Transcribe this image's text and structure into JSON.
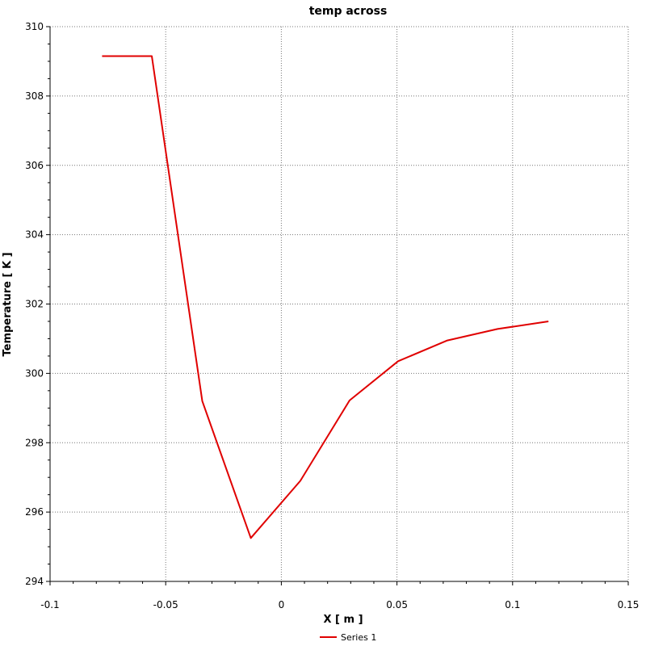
{
  "chart_data": {
    "type": "line",
    "title": "temp across",
    "xlabel": "X [ m ]",
    "ylabel": "Temperature [ K ]",
    "xlim": [
      -0.1,
      0.15
    ],
    "ylim": [
      294,
      310
    ],
    "xticks": [
      "-0.1",
      "-0.05",
      "0",
      "0.05",
      "0.1",
      "0.15"
    ],
    "yticks": [
      "294",
      "296",
      "298",
      "300",
      "302",
      "304",
      "306",
      "308",
      "310"
    ],
    "grid": true,
    "legend_position": "bottom-center",
    "series": [
      {
        "name": "Series 1",
        "color": "#e00000",
        "x": [
          -0.0775,
          -0.056,
          -0.0342,
          -0.0132,
          0.0082,
          0.0295,
          0.0505,
          0.0718,
          0.0935,
          0.1155
        ],
        "y": [
          309.15,
          309.15,
          299.2,
          295.25,
          296.9,
          299.22,
          300.35,
          300.95,
          301.28,
          301.5
        ]
      }
    ]
  }
}
